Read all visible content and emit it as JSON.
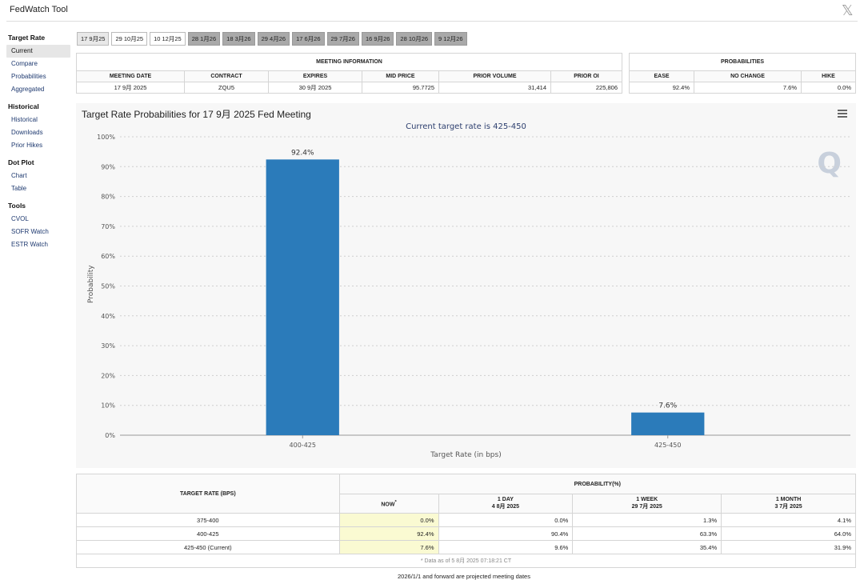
{
  "header": {
    "title": "FedWatch Tool",
    "x_logo": "𝕏"
  },
  "sidebar": {
    "groups": [
      {
        "heading": "Target Rate",
        "items": [
          "Current",
          "Compare",
          "Probabilities",
          "Aggregated"
        ]
      },
      {
        "heading": "Historical",
        "items": [
          "Historical",
          "Downloads",
          "Prior Hikes"
        ]
      },
      {
        "heading": "Dot Plot",
        "items": [
          "Chart",
          "Table"
        ]
      },
      {
        "heading": "Tools",
        "items": [
          "CVOL",
          "SOFR Watch",
          "ESTR Watch"
        ]
      }
    ],
    "active_item": "Current"
  },
  "tabs": [
    {
      "label": "17 9月25",
      "state": "active"
    },
    {
      "label": "29 10月25",
      "state": "normal"
    },
    {
      "label": "10 12月25",
      "state": "normal"
    },
    {
      "label": "28 1月26",
      "state": "future"
    },
    {
      "label": "18 3月26",
      "state": "future"
    },
    {
      "label": "29 4月26",
      "state": "future"
    },
    {
      "label": "17 6月26",
      "state": "future"
    },
    {
      "label": "29 7月26",
      "state": "future"
    },
    {
      "label": "16 9月26",
      "state": "future"
    },
    {
      "label": "28 10月26",
      "state": "future"
    },
    {
      "label": "9 12月26",
      "state": "future"
    }
  ],
  "meeting_info": {
    "section_title": "MEETING INFORMATION",
    "headers": [
      "MEETING DATE",
      "CONTRACT",
      "EXPIRES",
      "MID PRICE",
      "PRIOR VOLUME",
      "PRIOR OI"
    ],
    "row": [
      "17 9月 2025",
      "ZQU5",
      "30 9月 2025",
      "95.7725",
      "31,414",
      "225,806"
    ]
  },
  "probabilities": {
    "section_title": "PROBABILITIES",
    "headers": [
      "EASE",
      "NO CHANGE",
      "HIKE"
    ],
    "row": [
      "92.4%",
      "7.6%",
      "0.0%"
    ]
  },
  "chart_data": {
    "type": "bar",
    "title": "Target Rate Probabilities for 17 9月 2025 Fed Meeting",
    "subtitle": "Current target rate is 425-450",
    "xlabel": "Target Rate (in bps)",
    "ylabel": "Probability",
    "categories": [
      "400-425",
      "425-450"
    ],
    "values": [
      92.4,
      7.6
    ],
    "value_labels": [
      "92.4%",
      "7.6%"
    ],
    "ylim": [
      0,
      100
    ],
    "yticks": [
      "0%",
      "10%",
      "20%",
      "30%",
      "40%",
      "50%",
      "60%",
      "70%",
      "80%",
      "90%",
      "100%"
    ],
    "bar_color": "#2b7bba",
    "grid": true
  },
  "prob_table": {
    "col_target": "TARGET RATE (BPS)",
    "col_prob": "PROBABILITY(%)",
    "sub_headers": [
      {
        "line1": "NOW",
        "line2": "",
        "mark": "*"
      },
      {
        "line1": "1 DAY",
        "line2": "4 8月 2025",
        "mark": ""
      },
      {
        "line1": "1 WEEK",
        "line2": "29 7月 2025",
        "mark": ""
      },
      {
        "line1": "1 MONTH",
        "line2": "3 7月 2025",
        "mark": ""
      }
    ],
    "rows": [
      {
        "rate": "375-400",
        "values": [
          "0.0%",
          "0.0%",
          "1.3%",
          "4.1%"
        ]
      },
      {
        "rate": "400-425",
        "values": [
          "92.4%",
          "90.4%",
          "63.3%",
          "64.0%"
        ]
      },
      {
        "rate": "425-450 (Current)",
        "values": [
          "7.6%",
          "9.6%",
          "35.4%",
          "31.9%"
        ]
      }
    ],
    "footnote": "* Data as of 5 8月 2025 07:18:21 CT"
  },
  "bottom_note": "2026/1/1 and forward are projected meeting dates"
}
